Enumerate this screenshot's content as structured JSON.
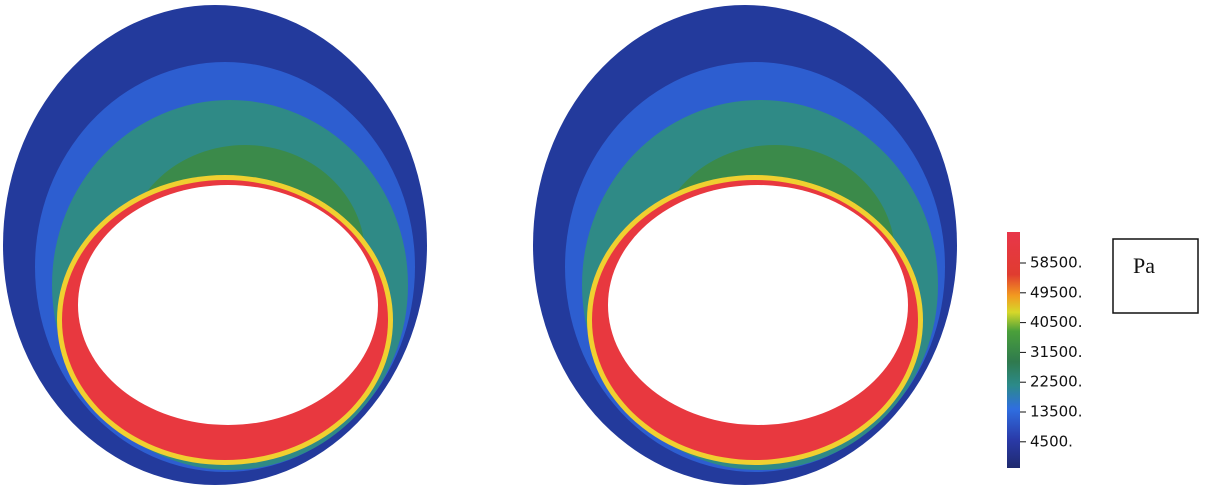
{
  "legend": {
    "ticks": [
      "58500.",
      "49500.",
      "40500.",
      "31500.",
      "22500.",
      "13500.",
      "4500."
    ],
    "unit": "Pa"
  }
}
